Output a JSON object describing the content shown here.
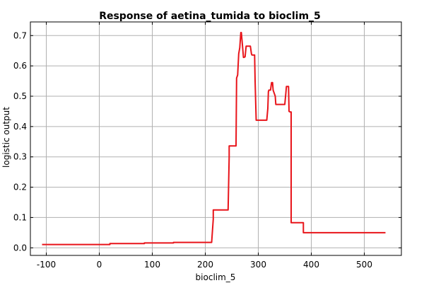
{
  "chart_data": {
    "type": "line",
    "title": "Response of aetina_tumida to bioclim_5",
    "xlabel": "bioclim_5",
    "ylabel": "logistic output",
    "xlim": [
      -130,
      570
    ],
    "ylim": [
      -0.025,
      0.745
    ],
    "xticks": [
      -100,
      0,
      100,
      200,
      300,
      400,
      500
    ],
    "yticks": [
      0.0,
      0.1,
      0.2,
      0.3,
      0.4,
      0.5,
      0.6,
      0.7
    ],
    "xtick_labels": [
      "-100",
      "0",
      "100",
      "200",
      "300",
      "400",
      "500"
    ],
    "ytick_labels": [
      "0.0",
      "0.1",
      "0.2",
      "0.3",
      "0.4",
      "0.5",
      "0.6",
      "0.7"
    ],
    "grid": true,
    "line_color": "#e8141a",
    "series": [
      {
        "x": [
          -108,
          20,
          20,
          85,
          85,
          140,
          140,
          212,
          215,
          215,
          243,
          245,
          245,
          258,
          259,
          261,
          263,
          265,
          267,
          268,
          270,
          272,
          273,
          275,
          277,
          279,
          282,
          283,
          285,
          287,
          288,
          290,
          293,
          294,
          296,
          298,
          299,
          316,
          318,
          319,
          320,
          322,
          323,
          325,
          327,
          328,
          330,
          332,
          333,
          335,
          337,
          338,
          340,
          350,
          352,
          353,
          355,
          357,
          358,
          360,
          362,
          362,
          365,
          385,
          385,
          540
        ],
        "y": [
          0.011,
          0.011,
          0.014,
          0.014,
          0.016,
          0.016,
          0.018,
          0.018,
          0.095,
          0.125,
          0.125,
          0.3,
          0.336,
          0.336,
          0.56,
          0.57,
          0.64,
          0.66,
          0.71,
          0.71,
          0.67,
          0.628,
          0.628,
          0.63,
          0.665,
          0.665,
          0.665,
          0.665,
          0.665,
          0.64,
          0.636,
          0.636,
          0.636,
          0.55,
          0.421,
          0.421,
          0.421,
          0.421,
          0.46,
          0.515,
          0.52,
          0.52,
          0.52,
          0.545,
          0.545,
          0.52,
          0.51,
          0.5,
          0.473,
          0.473,
          0.473,
          0.473,
          0.473,
          0.473,
          0.51,
          0.532,
          0.532,
          0.532,
          0.45,
          0.448,
          0.448,
          0.083,
          0.083,
          0.083,
          0.05,
          0.05
        ]
      }
    ]
  }
}
